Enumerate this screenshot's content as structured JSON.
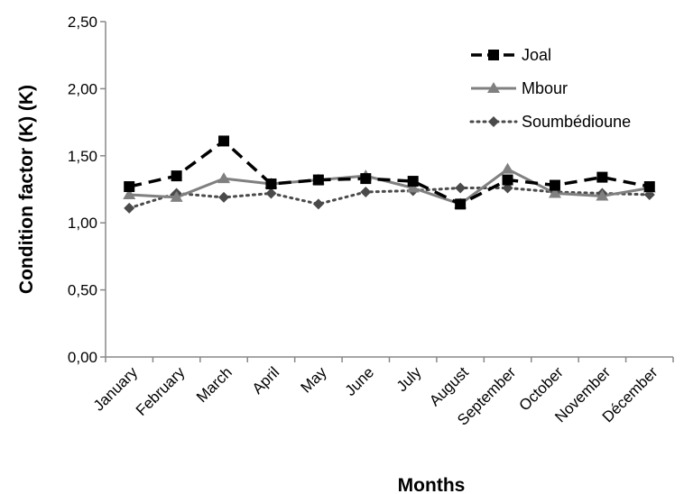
{
  "chart_data": {
    "type": "line",
    "title": "",
    "xlabel": "Months",
    "ylabel": "Condition factor (K) (K)",
    "categories": [
      "January",
      "February",
      "March",
      "April",
      "May",
      "June",
      "July",
      "August",
      "September",
      "October",
      "November",
      "Décember"
    ],
    "ylim": [
      0,
      2.5
    ],
    "yticks": [
      "0,00",
      "0,50",
      "1,00",
      "1,50",
      "2,00",
      "2,50"
    ],
    "grid": false,
    "legend_position": "top-right",
    "series": [
      {
        "name": "Joal",
        "values": [
          1.27,
          1.35,
          1.61,
          1.29,
          1.32,
          1.33,
          1.31,
          1.14,
          1.32,
          1.28,
          1.34,
          1.27
        ],
        "color": "#000000",
        "line_style": "dashed",
        "marker": "square"
      },
      {
        "name": "Mbour",
        "values": [
          1.21,
          1.19,
          1.33,
          1.29,
          1.32,
          1.35,
          1.26,
          1.14,
          1.4,
          1.22,
          1.2,
          1.26
        ],
        "color": "#808080",
        "line_style": "solid",
        "marker": "triangle"
      },
      {
        "name": "Soumbédioune",
        "values": [
          1.11,
          1.22,
          1.19,
          1.22,
          1.14,
          1.23,
          1.24,
          1.26,
          1.26,
          1.23,
          1.22,
          1.21
        ],
        "color": "#4a4a4a",
        "line_style": "dotted",
        "marker": "diamond"
      }
    ]
  }
}
